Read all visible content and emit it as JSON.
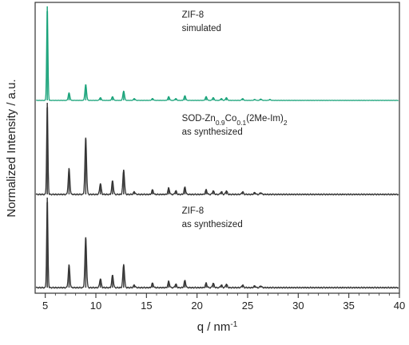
{
  "chart_data": {
    "type": "line",
    "xlabel": "q / nm",
    "xlabel_sup": "-1",
    "ylabel": "Normalized Intensity / a.u.",
    "xlim": [
      4,
      40
    ],
    "x_ticks": [
      5,
      10,
      15,
      20,
      25,
      30,
      35,
      40
    ],
    "y_ticks_shown": false,
    "grid": false,
    "series": [
      {
        "label_lines": [
          {
            "text": "ZIF-8"
          },
          {
            "text": "simulated"
          }
        ],
        "color": "#1aa37a",
        "peaks": [
          {
            "x": 5.2,
            "y": 1.0
          },
          {
            "x": 7.35,
            "y": 0.08
          },
          {
            "x": 9.0,
            "y": 0.17
          },
          {
            "x": 10.45,
            "y": 0.03
          },
          {
            "x": 11.65,
            "y": 0.04
          },
          {
            "x": 12.75,
            "y": 0.1
          },
          {
            "x": 13.8,
            "y": 0.02
          },
          {
            "x": 15.6,
            "y": 0.02
          },
          {
            "x": 17.2,
            "y": 0.04
          },
          {
            "x": 17.9,
            "y": 0.02
          },
          {
            "x": 18.8,
            "y": 0.05
          },
          {
            "x": 20.9,
            "y": 0.04
          },
          {
            "x": 21.6,
            "y": 0.03
          },
          {
            "x": 22.4,
            "y": 0.02
          },
          {
            "x": 22.9,
            "y": 0.03
          },
          {
            "x": 24.5,
            "y": 0.02
          },
          {
            "x": 25.7,
            "y": 0.01
          },
          {
            "x": 26.3,
            "y": 0.015
          },
          {
            "x": 27.2,
            "y": 0.01
          }
        ]
      },
      {
        "label_lines": [
          {
            "text": "SOD-Zn",
            "sub1": "0.9",
            "mid": "Co",
            "sub2": "0.1",
            "tail": "(2Me-Im)",
            "sub3": "2"
          },
          {
            "text": "as synthesized"
          }
        ],
        "color": "#333333",
        "peaks": [
          {
            "x": 5.2,
            "y": 1.0
          },
          {
            "x": 7.35,
            "y": 0.28
          },
          {
            "x": 9.0,
            "y": 0.62
          },
          {
            "x": 10.45,
            "y": 0.12
          },
          {
            "x": 11.65,
            "y": 0.15
          },
          {
            "x": 12.75,
            "y": 0.27
          },
          {
            "x": 13.8,
            "y": 0.03
          },
          {
            "x": 15.6,
            "y": 0.05
          },
          {
            "x": 17.2,
            "y": 0.07
          },
          {
            "x": 17.9,
            "y": 0.04
          },
          {
            "x": 18.8,
            "y": 0.08
          },
          {
            "x": 20.9,
            "y": 0.05
          },
          {
            "x": 21.6,
            "y": 0.04
          },
          {
            "x": 22.4,
            "y": 0.03
          },
          {
            "x": 22.9,
            "y": 0.04
          },
          {
            "x": 24.5,
            "y": 0.03
          },
          {
            "x": 25.7,
            "y": 0.02
          },
          {
            "x": 26.3,
            "y": 0.02
          }
        ]
      },
      {
        "label_lines": [
          {
            "text": "ZIF-8"
          },
          {
            "text": "as synthesized"
          }
        ],
        "color": "#333333",
        "peaks": [
          {
            "x": 5.2,
            "y": 1.0
          },
          {
            "x": 7.35,
            "y": 0.25
          },
          {
            "x": 9.0,
            "y": 0.56
          },
          {
            "x": 10.45,
            "y": 0.1
          },
          {
            "x": 11.65,
            "y": 0.14
          },
          {
            "x": 12.75,
            "y": 0.26
          },
          {
            "x": 13.8,
            "y": 0.03
          },
          {
            "x": 15.6,
            "y": 0.05
          },
          {
            "x": 17.2,
            "y": 0.07
          },
          {
            "x": 17.9,
            "y": 0.04
          },
          {
            "x": 18.8,
            "y": 0.08
          },
          {
            "x": 20.9,
            "y": 0.05
          },
          {
            "x": 21.6,
            "y": 0.05
          },
          {
            "x": 22.4,
            "y": 0.03
          },
          {
            "x": 22.9,
            "y": 0.04
          },
          {
            "x": 24.5,
            "y": 0.03
          },
          {
            "x": 25.7,
            "y": 0.02
          },
          {
            "x": 26.3,
            "y": 0.02
          }
        ]
      }
    ]
  }
}
